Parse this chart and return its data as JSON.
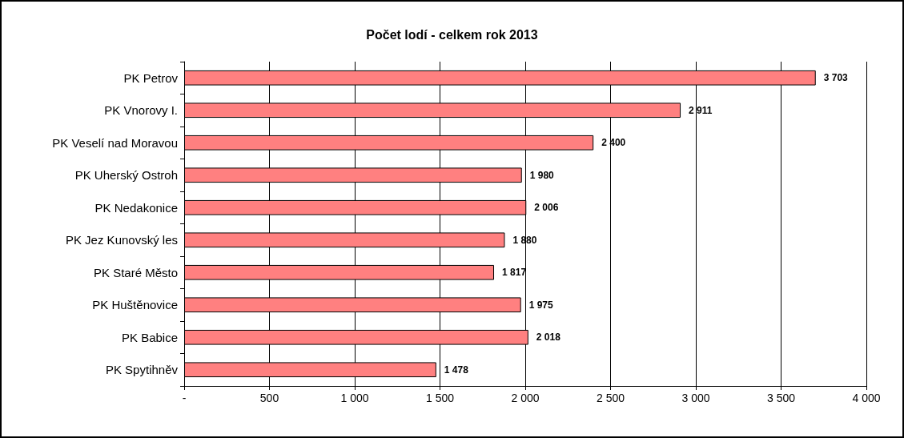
{
  "chart_data": {
    "type": "bar",
    "orientation": "horizontal",
    "title": "Počet lodí - celkem rok 2013",
    "categories": [
      "PK Petrov",
      "PK Vnorovy I.",
      "PK Veselí nad Moravou",
      "PK Uherský Ostroh",
      "PK Nedakonice",
      "PK Jez Kunovský les",
      "PK Staré Město",
      "PK Huštěnovice",
      "PK Babice",
      "PK Spytihněv"
    ],
    "values": [
      3703,
      2911,
      2400,
      1980,
      2006,
      1880,
      1817,
      1975,
      2018,
      1478
    ],
    "value_labels": [
      "3 703",
      "2 911",
      "2 400",
      "1 980",
      "2 006",
      "1 880",
      "1 817",
      "1 975",
      "2 018",
      "1 478"
    ],
    "color": "#ff8080",
    "xlim": [
      0,
      4000
    ],
    "xticks": [
      {
        "value": 0,
        "label": "-"
      },
      500,
      {
        "value": 1000,
        "label": "1 000"
      },
      {
        "value": 1500,
        "label": "1 500"
      },
      {
        "value": 2000,
        "label": "2 000"
      },
      {
        "value": 2500,
        "label": "2 500"
      },
      {
        "value": 3000,
        "label": "3 000"
      },
      {
        "value": 3500,
        "label": "3 500"
      },
      {
        "value": 4000,
        "label": "4 000"
      }
    ],
    "grid": "x"
  }
}
